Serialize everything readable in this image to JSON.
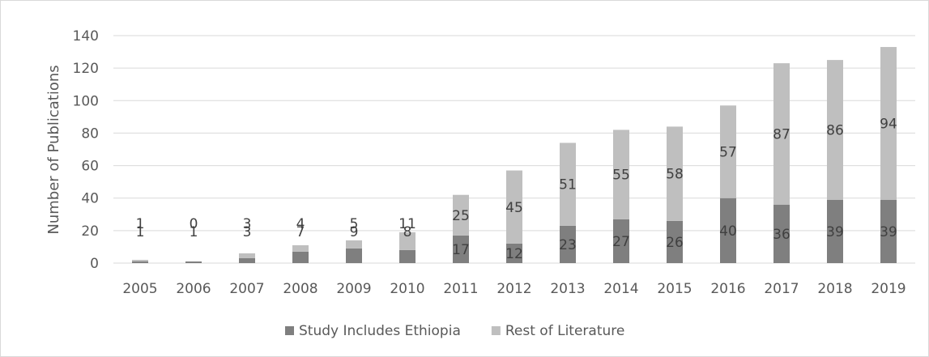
{
  "chart_data": {
    "type": "bar",
    "stacked": true,
    "title": "",
    "xlabel": "",
    "ylabel": "Number of Publications",
    "ylim": [
      0,
      140
    ],
    "yticks": [
      0,
      20,
      40,
      60,
      80,
      100,
      120,
      140
    ],
    "grid": true,
    "legend_position": "bottom",
    "categories": [
      "2005",
      "2006",
      "2007",
      "2008",
      "2009",
      "2010",
      "2011",
      "2012",
      "2013",
      "2014",
      "2015",
      "2016",
      "2017",
      "2018",
      "2019"
    ],
    "series": [
      {
        "name": "Study Includes Ethiopia",
        "color": "#7f7f7f",
        "values": [
          1,
          1,
          3,
          7,
          9,
          8,
          17,
          12,
          23,
          27,
          26,
          40,
          36,
          39,
          39
        ]
      },
      {
        "name": "Rest of Literature",
        "color": "#bfbfbf",
        "values": [
          1,
          0,
          3,
          4,
          5,
          11,
          25,
          45,
          51,
          55,
          58,
          57,
          87,
          86,
          94
        ]
      }
    ]
  }
}
